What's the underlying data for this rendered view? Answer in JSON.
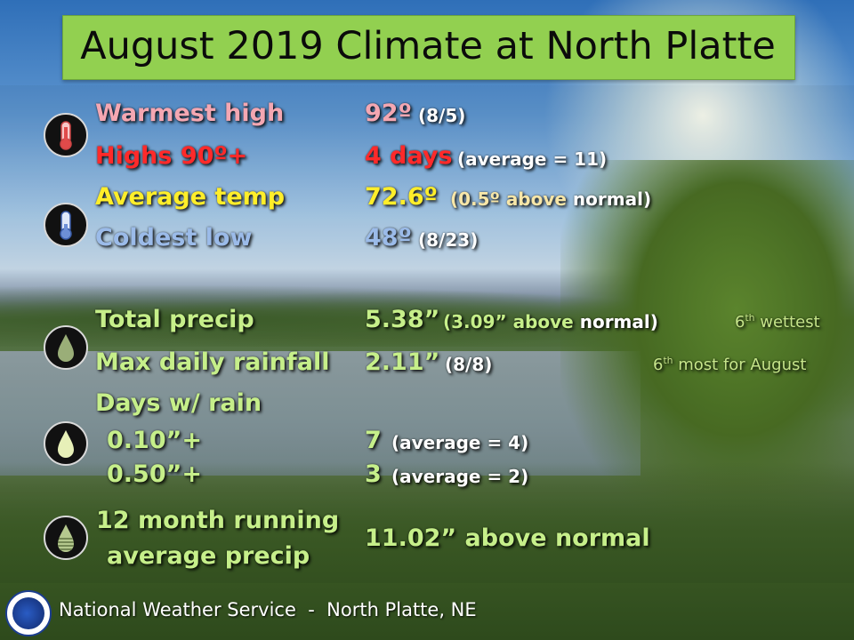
{
  "title": "August 2019 Climate at North Platte",
  "temperature": {
    "warmest_high": {
      "label": "Warmest high",
      "value": "92º",
      "note": "(8/5)"
    },
    "highs_90": {
      "label": "Highs 90º+",
      "value": "4 days",
      "note": "(average = 11)"
    },
    "average_temp": {
      "label": "Average temp",
      "value": "72.6º",
      "note_a": "(0.5º above",
      "note_b": " normal)"
    },
    "coldest_low": {
      "label": "Coldest low",
      "value": "48º",
      "note": "(8/23)"
    }
  },
  "precip": {
    "total": {
      "label": "Total precip",
      "value": "5.38”",
      "note_a": "(3.09” above",
      "note_b": " normal)",
      "rank_num": "6",
      "rank_sup": "th",
      "rank_text": " wettest"
    },
    "max_daily": {
      "label": "Max daily rainfall",
      "value": "2.11”",
      "note": "(8/8)",
      "rank_num": "6",
      "rank_sup": "th",
      "rank_text": " most for August"
    },
    "days_w_rain": {
      "label": "Days w/ rain",
      "row1": {
        "label": "0.10”+",
        "value": "7",
        "note": "(average = 4)"
      },
      "row2": {
        "label": "0.50”+",
        "value": "3",
        "note": "(average = 2)"
      }
    },
    "running": {
      "label_line1": "12 month running",
      "label_line2": "average precip",
      "value": "11.02” above normal"
    }
  },
  "icons": [
    "thermometer-warm-icon",
    "thermometer-cold-icon",
    "raindrop-icon",
    "raindrop-light-icon",
    "raindrop-split-icon"
  ],
  "footer": {
    "text": "National Weather Service  -  North Platte, NE"
  },
  "colors": {
    "title_bar": "#92d050",
    "warmest": "#f4a7b2",
    "highs": "#ff2a2a",
    "average": "#ffee2a",
    "coldest": "#9bbbe9",
    "precip_green": "#c6ef8a"
  }
}
